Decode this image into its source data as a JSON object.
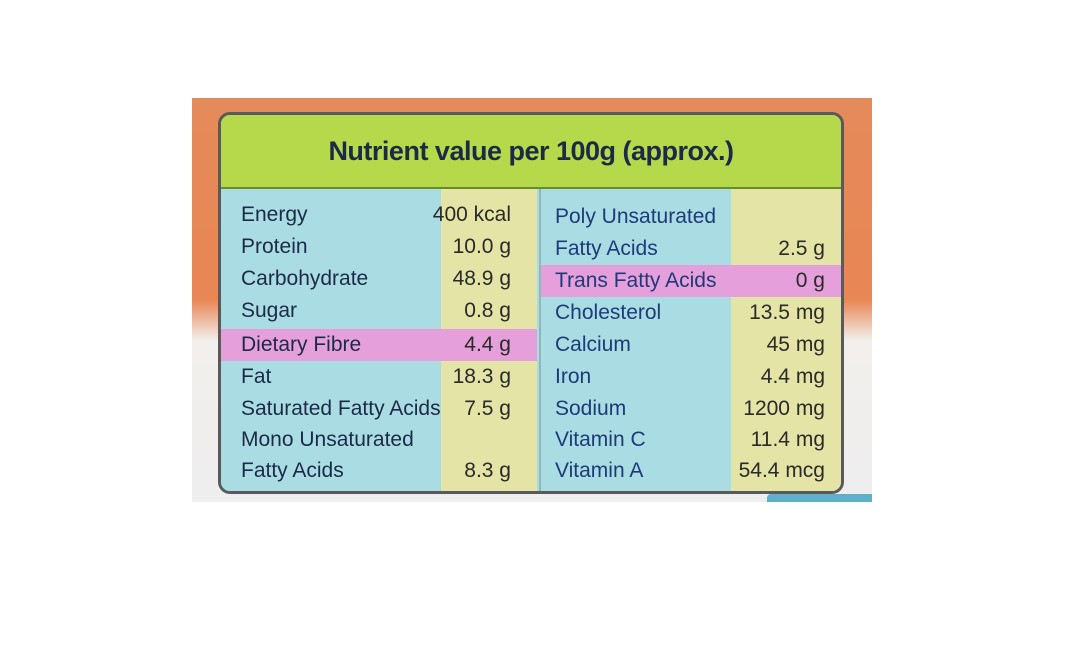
{
  "title": "Nutrient value per 100g (approx.)",
  "left": [
    {
      "name": "Energy",
      "value": "400 kcal"
    },
    {
      "name": "Protein",
      "value": "10.0 g"
    },
    {
      "name": "Carbohydrate",
      "value": "48.9 g"
    },
    {
      "name": "Sugar",
      "value": "0.8 g"
    },
    {
      "name": "Dietary Fibre",
      "value": "4.4 g",
      "highlight": true
    },
    {
      "name": "Fat",
      "value": "18.3 g"
    },
    {
      "name": "Saturated Fatty Acids",
      "value": "7.5 g"
    },
    {
      "name": "Mono Unsaturated",
      "value": ""
    },
    {
      "name": "Fatty Acids",
      "value": "8.3 g"
    }
  ],
  "right": [
    {
      "name": "Poly Unsaturated",
      "value": ""
    },
    {
      "name": "Fatty Acids",
      "value": "2.5 g"
    },
    {
      "name": "Trans Fatty Acids",
      "value": "0 g",
      "highlight": true
    },
    {
      "name": "Cholesterol",
      "value": "13.5 mg"
    },
    {
      "name": "Calcium",
      "value": "45 mg"
    },
    {
      "name": "Iron",
      "value": "4.4 mg"
    },
    {
      "name": "Sodium",
      "value": "1200 mg"
    },
    {
      "name": "Vitamin C",
      "value": "11.4 mg"
    },
    {
      "name": "Vitamin A",
      "value": "54.4 mcg"
    }
  ],
  "colors": {
    "header_green": "#b5d94a",
    "name_column_blue": "#a9dde3",
    "value_column_yellow": "#e4e4a6",
    "highlight_pink": "#e5a0dc",
    "package_orange": "#e88655"
  }
}
